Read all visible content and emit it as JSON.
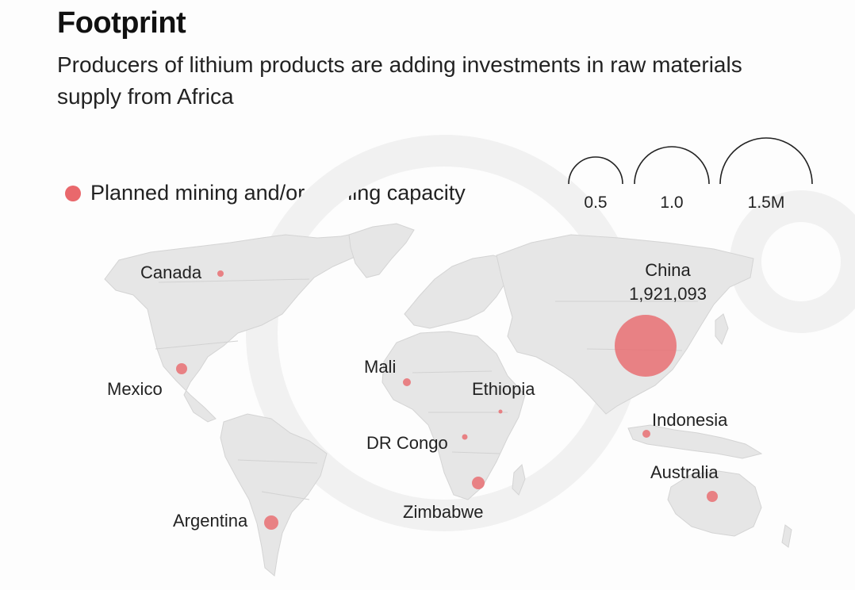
{
  "header": {
    "title": "Footprint",
    "subtitle": "Producers of lithium products are adding investments in raw materials supply from Africa"
  },
  "legend": {
    "label": "Planned mining and/or refining capacity",
    "color": "#e9686c"
  },
  "size_scale": {
    "labels": [
      "0.5",
      "1.0",
      "1.5M"
    ]
  },
  "map": {
    "land_color": "#e6e6e6",
    "points": [
      {
        "name": "Canada",
        "value_label": ""
      },
      {
        "name": "Mexico",
        "value_label": ""
      },
      {
        "name": "Argentina",
        "value_label": ""
      },
      {
        "name": "Mali",
        "value_label": ""
      },
      {
        "name": "Ethiopia",
        "value_label": ""
      },
      {
        "name": "DR Congo",
        "value_label": ""
      },
      {
        "name": "Zimbabwe",
        "value_label": ""
      },
      {
        "name": "China",
        "value_label": "1,921,093"
      },
      {
        "name": "Indonesia",
        "value_label": ""
      },
      {
        "name": "Australia",
        "value_label": ""
      }
    ]
  }
}
